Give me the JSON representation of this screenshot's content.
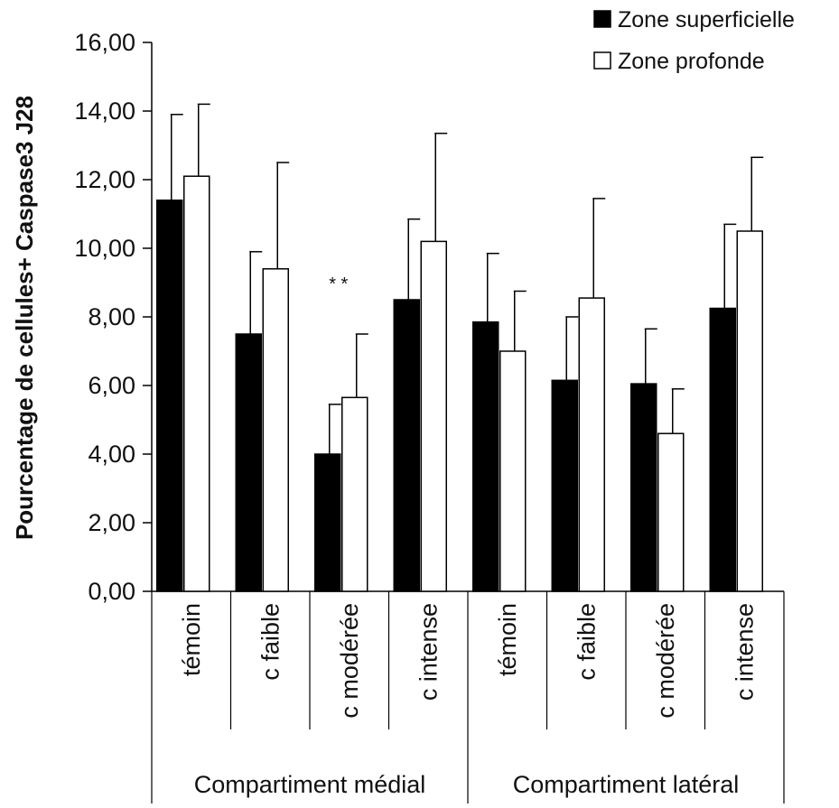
{
  "chart_data": {
    "type": "bar",
    "ylabel": "Pourcentage de cellules+ Caspase3 J28",
    "ylim": [
      0,
      16
    ],
    "ytick_labels": [
      "0,00",
      "2,00",
      "4,00",
      "6,00",
      "8,00",
      "10,00",
      "12,00",
      "14,00",
      "16,00"
    ],
    "yticks": [
      0,
      2,
      4,
      6,
      8,
      10,
      12,
      14,
      16
    ],
    "categories": [
      "témoin",
      "c faible",
      "c modérée",
      "c intense",
      "témoin",
      "c faible",
      "c modérée",
      "c intense"
    ],
    "groups": [
      {
        "label": "Compartiment médial",
        "span": 4
      },
      {
        "label": "Compartiment latéral",
        "span": 4
      }
    ],
    "series": [
      {
        "name": "Zone superficielle",
        "color": "#000000",
        "values": [
          11.4,
          7.5,
          4.0,
          8.5,
          7.85,
          6.15,
          6.05,
          8.25
        ],
        "errors": [
          2.5,
          2.4,
          1.45,
          2.35,
          2.0,
          1.85,
          1.6,
          2.45
        ]
      },
      {
        "name": "Zone profonde",
        "color": "#ffffff",
        "values": [
          12.1,
          9.4,
          5.65,
          10.2,
          7.0,
          8.55,
          4.6,
          10.5
        ],
        "errors": [
          2.1,
          3.1,
          1.85,
          3.15,
          1.75,
          2.9,
          1.3,
          2.15
        ]
      }
    ],
    "annotations": [
      {
        "text": "* *",
        "category_index": 2,
        "y": 9.0
      }
    ],
    "legend_position": "top-right",
    "grid": false
  }
}
